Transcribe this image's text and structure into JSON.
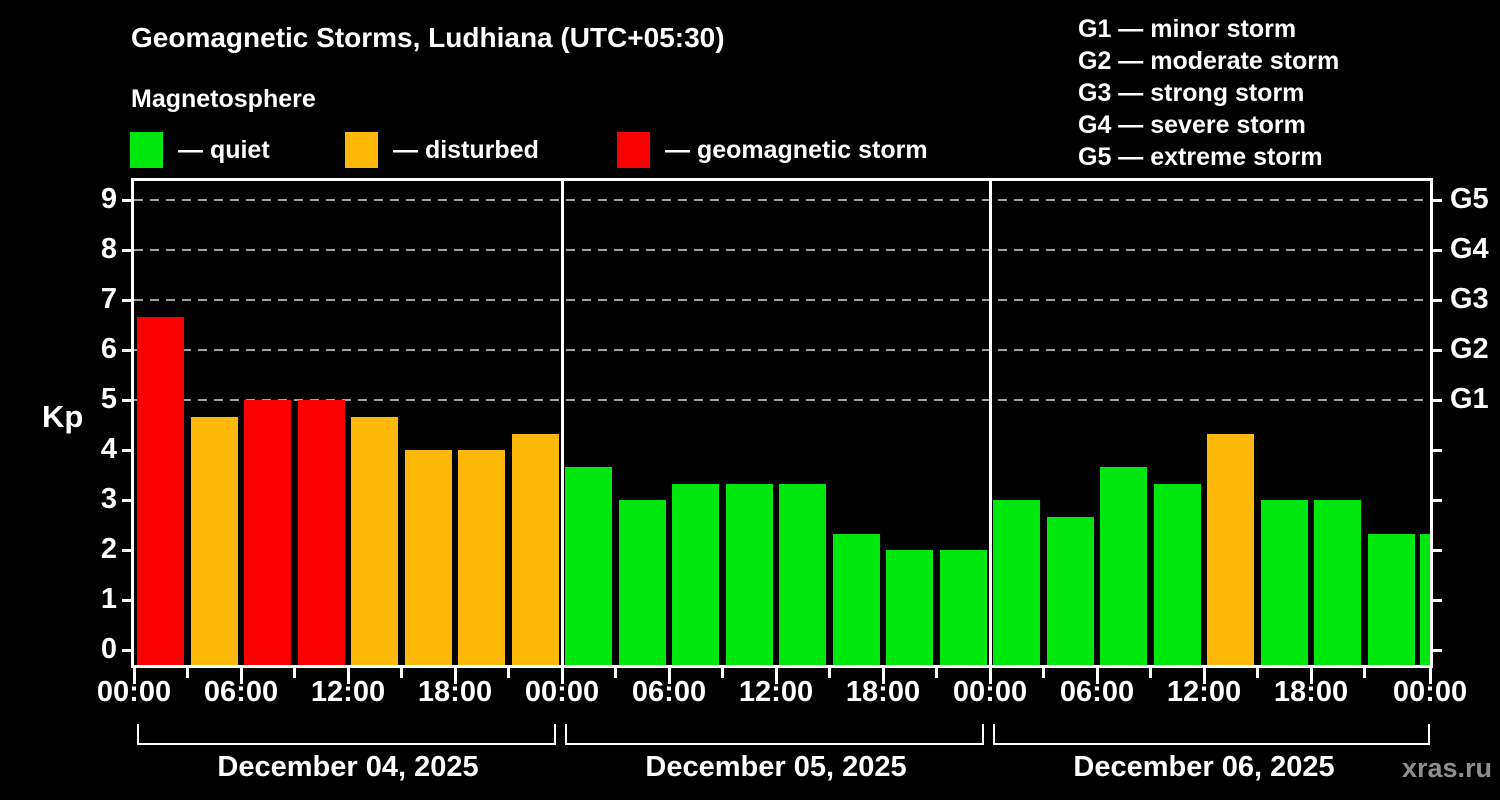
{
  "header": {
    "title": "Geomagnetic Storms, Ludhiana (UTC+05:30)",
    "subtitle": "Magnetosphere",
    "legend": [
      {
        "key": "quiet",
        "label": "— quiet",
        "color": "#00e70e"
      },
      {
        "key": "disturbed",
        "label": "— disturbed",
        "color": "#fdb80a"
      },
      {
        "key": "storm",
        "label": "— geomagnetic storm",
        "color": "#fb0000"
      }
    ],
    "g_scale_legend": [
      "G1 — minor storm",
      "G2 — moderate storm",
      "G3 — strong storm",
      "G4 — severe storm",
      "G5 — extreme storm"
    ]
  },
  "chart_data": {
    "type": "bar",
    "title": "Geomagnetic Storms, Ludhiana (UTC+05:30)",
    "ylabel": "Kp",
    "ylim": [
      0,
      9
    ],
    "yticks": [
      0,
      1,
      2,
      3,
      4,
      5,
      6,
      7,
      8,
      9
    ],
    "grid_levels": [
      5,
      6,
      7,
      8,
      9
    ],
    "right_axis_labels": [
      {
        "kp": 5,
        "label": "G1"
      },
      {
        "kp": 6,
        "label": "G2"
      },
      {
        "kp": 7,
        "label": "G3"
      },
      {
        "kp": 8,
        "label": "G4"
      },
      {
        "kp": 9,
        "label": "G5"
      }
    ],
    "x_tick_labels": [
      "00:00",
      "06:00",
      "12:00",
      "18:00",
      "00:00",
      "06:00",
      "12:00",
      "18:00",
      "00:00",
      "06:00",
      "12:00",
      "18:00",
      "00:00"
    ],
    "hours_per_bar": 3,
    "days": [
      {
        "date": "December 04, 2025",
        "values": [
          6.67,
          4.67,
          5.0,
          5.0,
          4.67,
          4.0,
          4.0,
          4.33
        ]
      },
      {
        "date": "December 05, 2025",
        "values": [
          3.67,
          3.0,
          3.33,
          3.33,
          3.33,
          2.33,
          2.0,
          2.0
        ]
      },
      {
        "date": "December 06, 2025",
        "values": [
          3.0,
          2.67,
          3.67,
          3.33,
          4.33,
          3.0,
          3.0,
          2.33
        ]
      }
    ],
    "next_day_partial_value": 2.33,
    "thresholds": {
      "disturbed_at": 4,
      "storm_at": 5
    },
    "colors": {
      "quiet": "#00e70e",
      "disturbed": "#fdb80a",
      "storm": "#fb0000",
      "gridline": "#a0a0a0",
      "axis": "#ffffff",
      "background": "#000000",
      "watermark_text": "#8f8f8f"
    }
  },
  "footer": {
    "watermark": "xras.ru"
  }
}
